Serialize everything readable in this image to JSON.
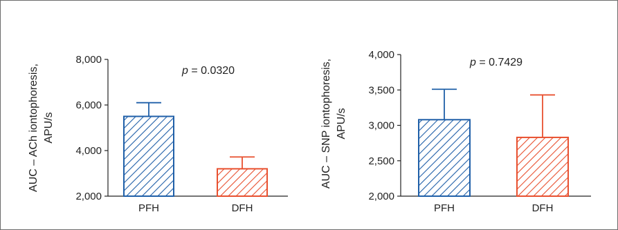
{
  "chart_data": [
    {
      "type": "bar",
      "categories": [
        "PFH",
        "DFH"
      ],
      "values": [
        5500,
        3200
      ],
      "error_upper": [
        6100,
        3720
      ],
      "ylabel_lines": [
        "AUC – ACh iontophoresis,",
        "APU/s"
      ],
      "ylim": [
        2000,
        8000
      ],
      "yticks": [
        "2,000",
        "4,000",
        "6,000",
        "8,000"
      ],
      "ytick_values": [
        2000,
        4000,
        6000,
        8000
      ],
      "annotation_p": "p",
      "annotation_value": " = 0.0320",
      "colors": [
        "#1f5fa8",
        "#e8502f"
      ],
      "bar_fill": "diagonal hatch",
      "grid": false,
      "legend": "none"
    },
    {
      "type": "bar",
      "categories": [
        "PFH",
        "DFH"
      ],
      "values": [
        3080,
        2830
      ],
      "error_upper": [
        3510,
        3430
      ],
      "ylabel_lines": [
        "AUC – SNP iontophoresis,",
        "APU/s"
      ],
      "ylim": [
        2000,
        4000
      ],
      "yticks": [
        "2,000",
        "2,500",
        "3,000",
        "3,500",
        "4,000"
      ],
      "ytick_values": [
        2000,
        2500,
        3000,
        3500,
        4000
      ],
      "annotation_p": "p",
      "annotation_value": " = 0.7429",
      "colors": [
        "#1f5fa8",
        "#e8502f"
      ],
      "bar_fill": "diagonal hatch",
      "grid": false,
      "legend": "none"
    }
  ]
}
